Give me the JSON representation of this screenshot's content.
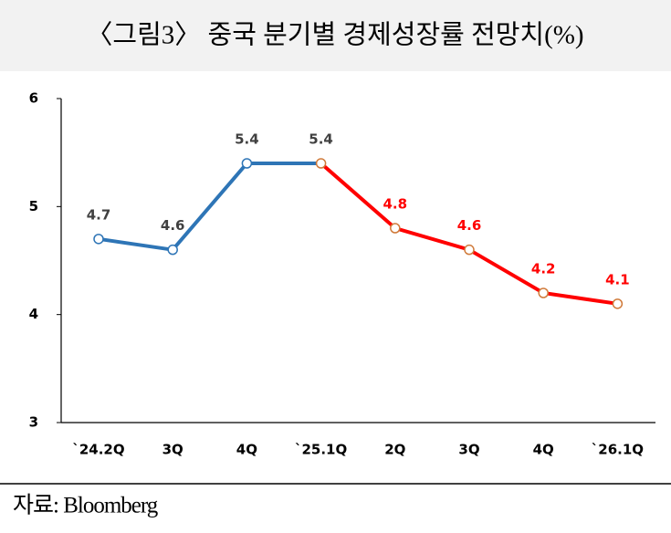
{
  "chart_data": {
    "type": "line",
    "title": "〈그림3〉 중국 분기별 경제성장률 전망치(%)",
    "source": "자료: Bloomberg",
    "categories": [
      "`24.2Q",
      "3Q",
      "4Q",
      "`25.1Q",
      "2Q",
      "3Q",
      "4Q",
      "`26.1Q"
    ],
    "series": [
      {
        "color": "#2e75b6",
        "marker_color": "#2e75b6",
        "label_color": "#404040",
        "values": [
          4.7,
          4.6,
          5.4,
          5.4,
          null,
          null,
          null,
          null
        ]
      },
      {
        "color": "#ff0000",
        "marker_color": "#d07a3a",
        "label_color": "#ff0000",
        "values": [
          null,
          null,
          null,
          5.4,
          4.8,
          4.6,
          4.2,
          4.1
        ]
      }
    ],
    "ylim": [
      3,
      6
    ],
    "yticks": [
      3,
      4,
      5,
      6
    ],
    "grid": false
  }
}
